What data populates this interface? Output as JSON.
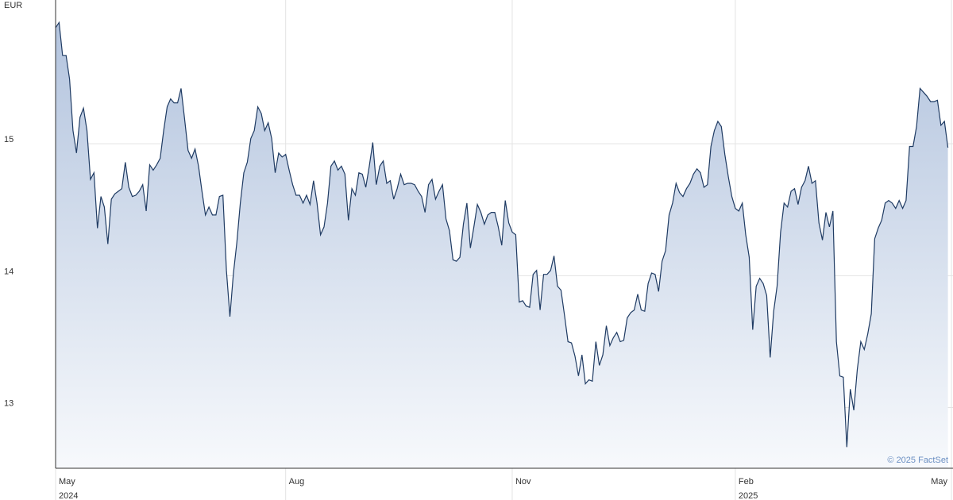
{
  "chart_data": {
    "type": "area",
    "y_unit": "EUR",
    "credit": "© 2025 FactSet",
    "color": "#1f3b63",
    "fill_top": "#b3c4de",
    "fill_bottom": "#f7f9fc",
    "grid": true,
    "ylim": [
      12.54,
      16.09
    ],
    "yticks": [
      13,
      14,
      15
    ],
    "xlim": [
      0,
      257
    ],
    "xticks": [
      {
        "value": 0,
        "label": "May"
      },
      {
        "value": 66,
        "label": "Aug"
      },
      {
        "value": 131,
        "label": "Nov"
      },
      {
        "value": 195,
        "label": "Feb"
      },
      {
        "value": 257,
        "label": "May"
      }
    ],
    "x_year_labels": [
      {
        "value": 0,
        "label": "2024"
      },
      {
        "value": 195,
        "label": "2025"
      }
    ],
    "values": [
      15.88,
      15.92,
      15.67,
      15.67,
      15.49,
      15.1,
      14.93,
      15.2,
      15.27,
      15.1,
      14.73,
      14.78,
      14.36,
      14.6,
      14.52,
      14.24,
      14.58,
      14.62,
      14.64,
      14.66,
      14.86,
      14.67,
      14.6,
      14.61,
      14.64,
      14.69,
      14.49,
      14.84,
      14.8,
      14.84,
      14.89,
      15.1,
      15.28,
      15.34,
      15.31,
      15.31,
      15.42,
      15.19,
      14.95,
      14.89,
      14.96,
      14.83,
      14.64,
      14.46,
      14.52,
      14.46,
      14.46,
      14.6,
      14.61,
      14.04,
      13.69,
      14.01,
      14.25,
      14.55,
      14.78,
      14.86,
      15.04,
      15.1,
      15.28,
      15.23,
      15.1,
      15.16,
      15.04,
      14.78,
      14.93,
      14.9,
      14.92,
      14.8,
      14.69,
      14.61,
      14.61,
      14.55,
      14.61,
      14.54,
      14.72,
      14.55,
      14.31,
      14.37,
      14.55,
      14.83,
      14.87,
      14.8,
      14.83,
      14.77,
      14.42,
      14.66,
      14.61,
      14.78,
      14.77,
      14.67,
      14.83,
      15.01,
      14.69,
      14.83,
      14.87,
      14.7,
      14.72,
      14.58,
      14.66,
      14.77,
      14.69,
      14.7,
      14.7,
      14.69,
      14.64,
      14.6,
      14.48,
      14.69,
      14.73,
      14.58,
      14.64,
      14.69,
      14.43,
      14.34,
      14.12,
      14.11,
      14.14,
      14.39,
      14.55,
      14.21,
      14.37,
      14.54,
      14.48,
      14.39,
      14.46,
      14.48,
      14.48,
      14.37,
      14.23,
      14.57,
      14.4,
      14.33,
      14.31,
      13.8,
      13.81,
      13.77,
      13.76,
      14.01,
      14.04,
      13.74,
      14.01,
      14.01,
      14.04,
      14.15,
      13.92,
      13.89,
      13.7,
      13.5,
      13.49,
      13.39,
      13.24,
      13.4,
      13.18,
      13.21,
      13.2,
      13.5,
      13.32,
      13.4,
      13.62,
      13.47,
      13.53,
      13.57,
      13.5,
      13.51,
      13.68,
      13.72,
      13.74,
      13.86,
      13.74,
      13.73,
      13.94,
      14.02,
      14.01,
      13.88,
      14.11,
      14.19,
      14.46,
      14.55,
      14.7,
      14.63,
      14.6,
      14.66,
      14.7,
      14.77,
      14.81,
      14.78,
      14.67,
      14.69,
      14.98,
      15.1,
      15.17,
      15.13,
      14.92,
      14.75,
      14.6,
      14.51,
      14.49,
      14.55,
      14.31,
      14.14,
      13.59,
      13.92,
      13.98,
      13.94,
      13.85,
      13.38,
      13.73,
      13.92,
      14.33,
      14.55,
      14.52,
      14.64,
      14.66,
      14.54,
      14.67,
      14.72,
      14.83,
      14.7,
      14.72,
      14.4,
      14.27,
      14.48,
      14.37,
      14.49,
      13.5,
      13.24,
      13.23,
      12.7,
      13.14,
      12.98,
      13.29,
      13.5,
      13.44,
      13.56,
      13.71,
      14.28,
      14.36,
      14.42,
      14.55,
      14.57,
      14.55,
      14.51,
      14.57,
      14.51,
      14.57,
      14.98,
      14.98,
      15.13,
      15.42,
      15.39,
      15.36,
      15.32,
      15.32,
      15.33,
      15.14,
      15.17,
      14.97
    ]
  }
}
